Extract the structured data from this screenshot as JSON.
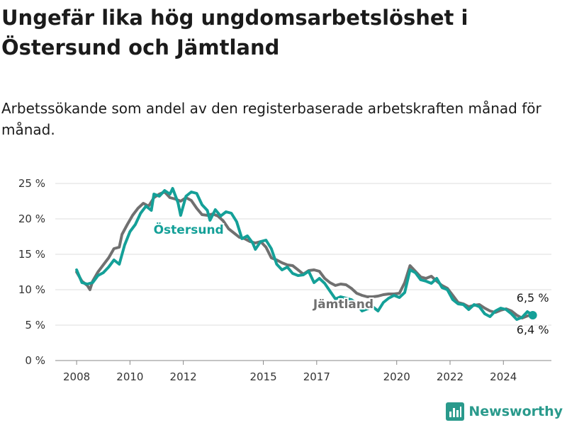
{
  "header": {
    "title": "Ungefär lika hög ungdomsarbetslöshet i Östersund och Jämtland",
    "subtitle": "Arbetssökande som andel av den registerbaserade arbetskraften månad för månad."
  },
  "brand": {
    "name": "Newsworthy",
    "icon": "newsworthy-logo-icon",
    "color": "#2a9a8c"
  },
  "chart_data": {
    "type": "line",
    "title": "Ungefär lika hög ungdomsarbetslöshet i Östersund och Jämtland",
    "subtitle": "Arbetssökande som andel av den registerbaserade arbetskraften månad för månad.",
    "xlabel": "",
    "ylabel": "",
    "xlim": [
      2007.2,
      2025.8
    ],
    "ylim": [
      0,
      25
    ],
    "yticks": [
      0,
      5,
      10,
      15,
      20,
      25
    ],
    "ytick_labels": [
      "0 %",
      "5 %",
      "10 %",
      "15 %",
      "20 %",
      "25 %"
    ],
    "xticks": [
      2008,
      2010,
      2012,
      2015,
      2017,
      2020,
      2022,
      2024
    ],
    "xtick_labels": [
      "2008",
      "2010",
      "2012",
      "2015",
      "2017",
      "2020",
      "2022",
      "2024"
    ],
    "grid": true,
    "legend": "inline labels",
    "series": [
      {
        "name": "Jämtland",
        "color": "#707070",
        "points": [
          [
            2008.0,
            12.5
          ],
          [
            2008.2,
            11.2
          ],
          [
            2008.4,
            10.6
          ],
          [
            2008.5,
            10.0
          ],
          [
            2008.6,
            11.2
          ],
          [
            2008.8,
            12.5
          ],
          [
            2009.0,
            13.5
          ],
          [
            2009.2,
            14.5
          ],
          [
            2009.4,
            15.8
          ],
          [
            2009.6,
            16.0
          ],
          [
            2009.7,
            17.8
          ],
          [
            2009.9,
            19.2
          ],
          [
            2010.1,
            20.5
          ],
          [
            2010.3,
            21.5
          ],
          [
            2010.5,
            22.2
          ],
          [
            2010.7,
            21.8
          ],
          [
            2010.9,
            23.0
          ],
          [
            2011.1,
            23.5
          ],
          [
            2011.3,
            23.8
          ],
          [
            2011.5,
            23.0
          ],
          [
            2011.7,
            22.8
          ],
          [
            2011.9,
            22.5
          ],
          [
            2012.1,
            23.0
          ],
          [
            2012.3,
            22.6
          ],
          [
            2012.5,
            21.5
          ],
          [
            2012.7,
            20.6
          ],
          [
            2012.9,
            20.5
          ],
          [
            2013.1,
            20.7
          ],
          [
            2013.3,
            20.4
          ],
          [
            2013.5,
            19.7
          ],
          [
            2013.7,
            18.6
          ],
          [
            2013.9,
            18.0
          ],
          [
            2014.1,
            17.4
          ],
          [
            2014.3,
            17.2
          ],
          [
            2014.5,
            16.8
          ],
          [
            2014.7,
            16.6
          ],
          [
            2014.9,
            16.8
          ],
          [
            2015.1,
            16.0
          ],
          [
            2015.3,
            14.5
          ],
          [
            2015.5,
            14.2
          ],
          [
            2015.7,
            13.8
          ],
          [
            2015.9,
            13.5
          ],
          [
            2016.1,
            13.4
          ],
          [
            2016.3,
            12.8
          ],
          [
            2016.5,
            12.2
          ],
          [
            2016.7,
            12.7
          ],
          [
            2016.9,
            12.8
          ],
          [
            2017.1,
            12.6
          ],
          [
            2017.3,
            11.6
          ],
          [
            2017.5,
            11.0
          ],
          [
            2017.7,
            10.6
          ],
          [
            2017.9,
            10.8
          ],
          [
            2018.1,
            10.7
          ],
          [
            2018.3,
            10.2
          ],
          [
            2018.5,
            9.5
          ],
          [
            2018.7,
            9.2
          ],
          [
            2018.9,
            9.0
          ],
          [
            2019.1,
            9.0
          ],
          [
            2019.3,
            9.1
          ],
          [
            2019.5,
            9.3
          ],
          [
            2019.7,
            9.4
          ],
          [
            2019.9,
            9.4
          ],
          [
            2020.1,
            9.5
          ],
          [
            2020.3,
            11.0
          ],
          [
            2020.5,
            13.4
          ],
          [
            2020.7,
            12.6
          ],
          [
            2020.9,
            11.8
          ],
          [
            2021.1,
            11.6
          ],
          [
            2021.3,
            11.9
          ],
          [
            2021.5,
            11.2
          ],
          [
            2021.7,
            10.6
          ],
          [
            2021.9,
            10.2
          ],
          [
            2022.1,
            9.2
          ],
          [
            2022.3,
            8.2
          ],
          [
            2022.5,
            8.0
          ],
          [
            2022.7,
            7.6
          ],
          [
            2022.9,
            7.8
          ],
          [
            2023.1,
            7.9
          ],
          [
            2023.3,
            7.4
          ],
          [
            2023.5,
            7.0
          ],
          [
            2023.7,
            6.8
          ],
          [
            2023.9,
            7.1
          ],
          [
            2024.1,
            7.3
          ],
          [
            2024.3,
            7.0
          ],
          [
            2024.5,
            6.4
          ],
          [
            2024.7,
            6.0
          ],
          [
            2024.9,
            6.3
          ],
          [
            2025.1,
            6.5
          ]
        ]
      },
      {
        "name": "Östersund",
        "color": "#14a098",
        "points": [
          [
            2008.0,
            12.8
          ],
          [
            2008.2,
            11.0
          ],
          [
            2008.4,
            10.8
          ],
          [
            2008.6,
            11.0
          ],
          [
            2008.8,
            12.0
          ],
          [
            2009.0,
            12.4
          ],
          [
            2009.2,
            13.2
          ],
          [
            2009.4,
            14.2
          ],
          [
            2009.6,
            13.6
          ],
          [
            2009.8,
            16.3
          ],
          [
            2010.0,
            18.2
          ],
          [
            2010.2,
            19.2
          ],
          [
            2010.4,
            20.8
          ],
          [
            2010.6,
            21.8
          ],
          [
            2010.8,
            21.2
          ],
          [
            2010.9,
            23.5
          ],
          [
            2011.1,
            23.2
          ],
          [
            2011.3,
            24.0
          ],
          [
            2011.5,
            23.5
          ],
          [
            2011.6,
            24.3
          ],
          [
            2011.8,
            22.3
          ],
          [
            2011.9,
            20.5
          ],
          [
            2012.1,
            23.2
          ],
          [
            2012.3,
            23.8
          ],
          [
            2012.5,
            23.6
          ],
          [
            2012.7,
            22.0
          ],
          [
            2012.9,
            21.2
          ],
          [
            2013.0,
            19.8
          ],
          [
            2013.2,
            21.3
          ],
          [
            2013.4,
            20.4
          ],
          [
            2013.6,
            21.0
          ],
          [
            2013.8,
            20.8
          ],
          [
            2014.0,
            19.6
          ],
          [
            2014.2,
            17.2
          ],
          [
            2014.4,
            17.6
          ],
          [
            2014.6,
            16.6
          ],
          [
            2014.7,
            15.7
          ],
          [
            2014.9,
            16.8
          ],
          [
            2015.1,
            17.0
          ],
          [
            2015.3,
            15.8
          ],
          [
            2015.5,
            13.6
          ],
          [
            2015.7,
            12.8
          ],
          [
            2015.9,
            13.2
          ],
          [
            2016.1,
            12.3
          ],
          [
            2016.3,
            12.0
          ],
          [
            2016.5,
            12.1
          ],
          [
            2016.7,
            12.6
          ],
          [
            2016.9,
            11.0
          ],
          [
            2017.1,
            11.6
          ],
          [
            2017.3,
            10.9
          ],
          [
            2017.5,
            9.8
          ],
          [
            2017.7,
            8.7
          ],
          [
            2017.9,
            9.0
          ],
          [
            2018.1,
            8.8
          ],
          [
            2018.3,
            8.6
          ],
          [
            2018.5,
            8.0
          ],
          [
            2018.7,
            7.0
          ],
          [
            2018.9,
            7.3
          ],
          [
            2019.1,
            7.6
          ],
          [
            2019.3,
            7.0
          ],
          [
            2019.5,
            8.2
          ],
          [
            2019.7,
            8.8
          ],
          [
            2019.9,
            9.2
          ],
          [
            2020.1,
            8.9
          ],
          [
            2020.3,
            9.6
          ],
          [
            2020.5,
            12.8
          ],
          [
            2020.7,
            12.4
          ],
          [
            2020.9,
            11.4
          ],
          [
            2021.1,
            11.2
          ],
          [
            2021.3,
            10.9
          ],
          [
            2021.5,
            11.6
          ],
          [
            2021.7,
            10.3
          ],
          [
            2021.9,
            10.0
          ],
          [
            2022.1,
            8.6
          ],
          [
            2022.3,
            8.0
          ],
          [
            2022.5,
            7.9
          ],
          [
            2022.7,
            7.2
          ],
          [
            2022.9,
            7.9
          ],
          [
            2023.1,
            7.6
          ],
          [
            2023.3,
            6.6
          ],
          [
            2023.5,
            6.2
          ],
          [
            2023.7,
            7.0
          ],
          [
            2023.9,
            7.4
          ],
          [
            2024.1,
            7.2
          ],
          [
            2024.3,
            6.6
          ],
          [
            2024.5,
            5.8
          ],
          [
            2024.7,
            6.1
          ],
          [
            2024.9,
            6.9
          ],
          [
            2025.1,
            6.4
          ]
        ]
      }
    ],
    "annotations": [
      {
        "series": "Östersund",
        "text": "Östersund",
        "x": 2012.2,
        "y": 18.5,
        "color": "#14a098"
      },
      {
        "series": "Jämtland",
        "text": "Jämtland",
        "x": 2018.0,
        "y": 8.0,
        "color": "#707070"
      },
      {
        "series": "Jämtland",
        "text": "6,5 %",
        "x": 2025.1,
        "y": 6.5
      },
      {
        "series": "Östersund",
        "text": "6,4 %",
        "x": 2025.1,
        "y": 6.4
      }
    ]
  }
}
